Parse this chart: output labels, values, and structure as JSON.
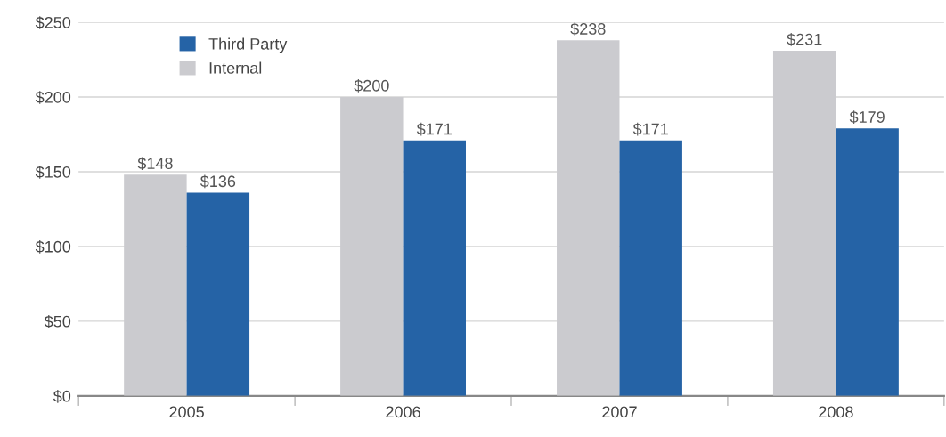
{
  "chart_data": {
    "type": "bar",
    "categories": [
      "2005",
      "2006",
      "2007",
      "2008"
    ],
    "series": [
      {
        "name": "Internal",
        "color": "#cbcbcf",
        "values": [
          148,
          200,
          238,
          231
        ],
        "value_labels": [
          "$148",
          "$200",
          "$238",
          "$231"
        ]
      },
      {
        "name": "Third Party",
        "color": "#2563a6",
        "values": [
          136,
          171,
          171,
          179
        ],
        "value_labels": [
          "$136",
          "$171",
          "$171",
          "$179"
        ]
      }
    ],
    "ylim": [
      0,
      250
    ],
    "yticks": [
      {
        "value": 0,
        "label": "$0"
      },
      {
        "value": 50,
        "label": "$50"
      },
      {
        "value": 100,
        "label": "$100"
      },
      {
        "value": 150,
        "label": "$150"
      },
      {
        "value": 200,
        "label": "$200"
      },
      {
        "value": 250,
        "label": "$250"
      }
    ],
    "grid": "y",
    "legend": "top left"
  }
}
